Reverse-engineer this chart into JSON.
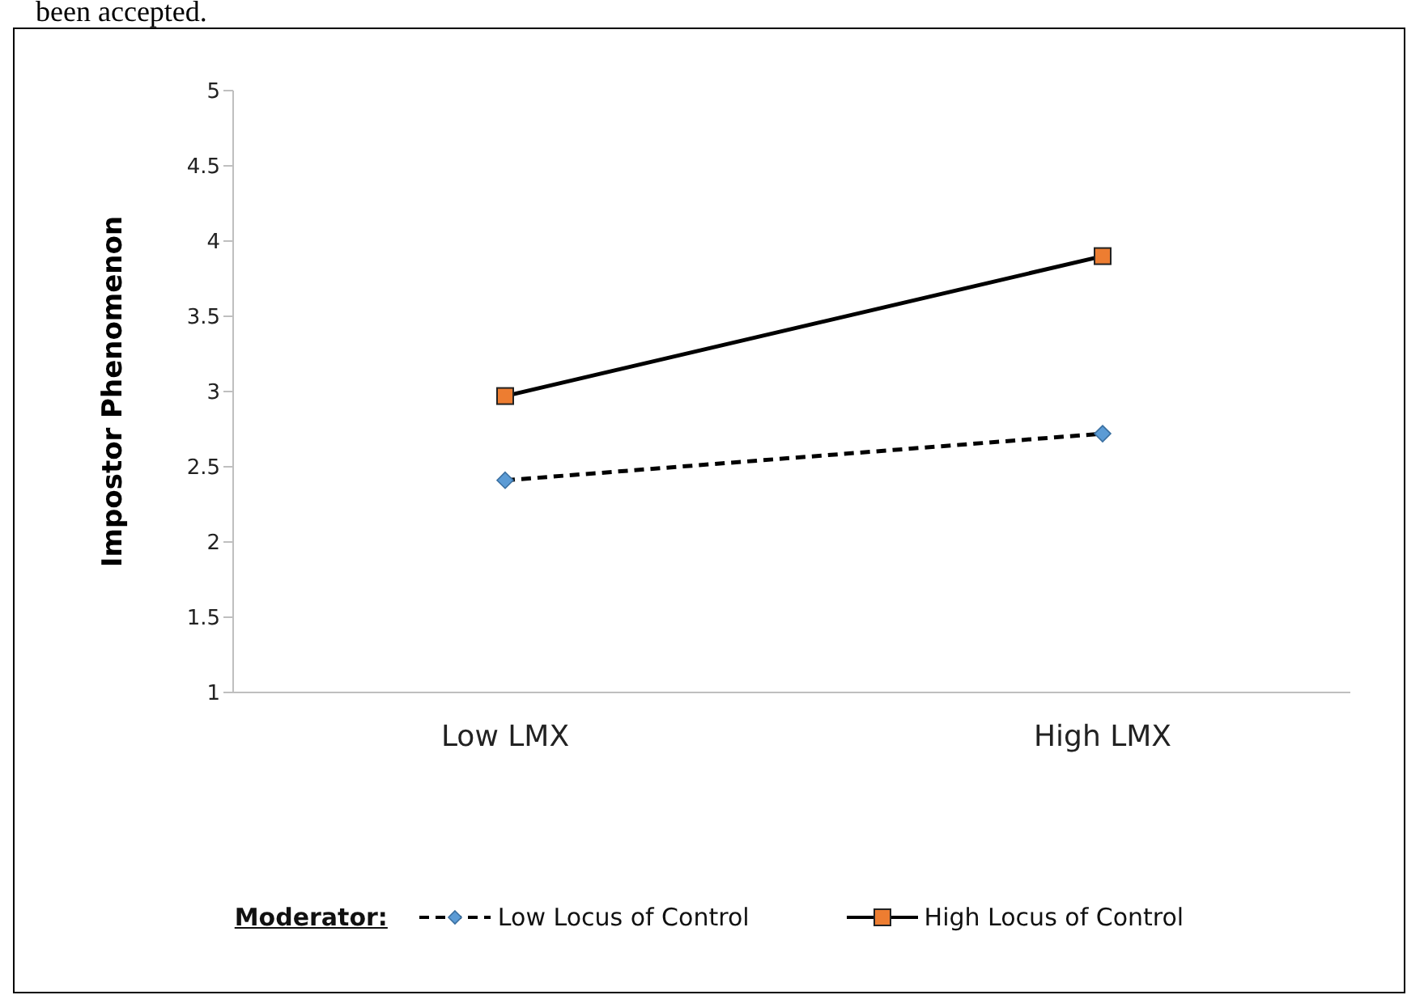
{
  "chart_data": {
    "type": "line",
    "ylabel": "Impostor Phenomenon",
    "legend_title": "Moderator:",
    "annotations": [
      "been accepted."
    ],
    "categories": [
      "Low LMX",
      "High LMX"
    ],
    "ylim": [
      1,
      5
    ],
    "yticks": [
      1,
      1.5,
      2,
      2.5,
      3,
      3.5,
      4,
      4.5,
      5
    ],
    "grid": false,
    "legend": "bottom",
    "series": [
      {
        "name": "Low Locus of Control",
        "color": "#5b9bd5",
        "values": [
          2.41,
          2.72
        ],
        "marker": "diamond",
        "line_style": "dashed"
      },
      {
        "name": "High Locus of Control",
        "color": "#ed7d31",
        "values": [
          2.97,
          3.9
        ],
        "marker": "square",
        "line_style": "solid"
      }
    ]
  }
}
